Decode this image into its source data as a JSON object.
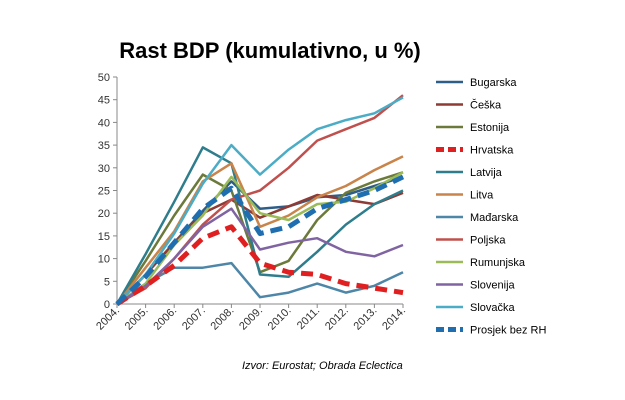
{
  "chart_data": {
    "type": "line",
    "title": "Rast BDP (kumulativno, u %)",
    "xlabel": "",
    "ylabel": "",
    "categories": [
      "2004.",
      "2005.",
      "2006.",
      "2007.",
      "2008.",
      "2009.",
      "2010.",
      "2011.",
      "2012.",
      "2013.",
      "2014."
    ],
    "ylim": [
      0,
      50
    ],
    "yticks": [
      0,
      5,
      10,
      15,
      20,
      25,
      30,
      35,
      40,
      45,
      50
    ],
    "grid": false,
    "legend_position": "right",
    "series": [
      {
        "name": "Bugarska",
        "color": "#2E5E88",
        "style": "solid",
        "values": [
          0,
          6.5,
          13.5,
          20.5,
          27,
          21,
          21.5,
          23.5,
          24,
          26,
          28
        ]
      },
      {
        "name": "Češka",
        "color": "#8E3A35",
        "style": "solid",
        "values": [
          0,
          6.5,
          13.5,
          20,
          23,
          19,
          21.5,
          24,
          23,
          22,
          24.5
        ]
      },
      {
        "name": "Estonija",
        "color": "#6B7A3A",
        "style": "solid",
        "values": [
          0,
          9.5,
          19.5,
          28.5,
          25,
          7,
          9.5,
          18.5,
          24.5,
          27,
          29
        ]
      },
      {
        "name": "Hrvatska",
        "color": "#E02020",
        "style": "dashed",
        "values": [
          0,
          4,
          8.5,
          14.5,
          17,
          9,
          7,
          6.5,
          4.5,
          3.5,
          2.5
        ]
      },
      {
        "name": "Latvija",
        "color": "#2E7D8C",
        "style": "solid",
        "values": [
          0,
          11,
          22.5,
          34.5,
          31,
          6.5,
          6,
          11.5,
          17.5,
          22,
          25
        ]
      },
      {
        "name": "Litva",
        "color": "#C8844A",
        "style": "solid",
        "values": [
          0,
          8,
          16,
          27,
          31,
          17,
          19.5,
          23.5,
          26,
          29.5,
          32.5
        ]
      },
      {
        "name": "Mađarska",
        "color": "#4E86A8",
        "style": "solid",
        "values": [
          0,
          4.5,
          8,
          8,
          9,
          1.5,
          2.5,
          4.5,
          2.5,
          4,
          7
        ]
      },
      {
        "name": "Poljska",
        "color": "#C0504D",
        "style": "solid",
        "values": [
          0,
          3.5,
          10,
          17.5,
          23,
          25,
          30,
          36,
          38.5,
          41,
          46
        ]
      },
      {
        "name": "Rumunjska",
        "color": "#9BBB59",
        "style": "solid",
        "values": [
          0,
          4.5,
          13,
          19.5,
          28,
          20,
          18.5,
          22,
          22.5,
          25.5,
          29
        ]
      },
      {
        "name": "Slovenija",
        "color": "#8064A2",
        "style": "solid",
        "values": [
          0,
          4,
          10,
          17,
          21,
          12,
          13.5,
          14.5,
          11.5,
          10.5,
          13
        ]
      },
      {
        "name": "Slovačka",
        "color": "#4BACC6",
        "style": "solid",
        "values": [
          0,
          6.5,
          15.5,
          26.5,
          35,
          28.5,
          34,
          38.5,
          40.5,
          42,
          45.5
        ]
      },
      {
        "name": "Prosjek bez RH",
        "color": "#1F6EB0",
        "style": "dashed",
        "values": [
          0,
          6,
          13.5,
          21,
          25.5,
          15.5,
          17,
          21,
          23,
          25,
          28
        ]
      }
    ],
    "source": "Izvor:  Eurostat;  Obrada Eclectica"
  }
}
